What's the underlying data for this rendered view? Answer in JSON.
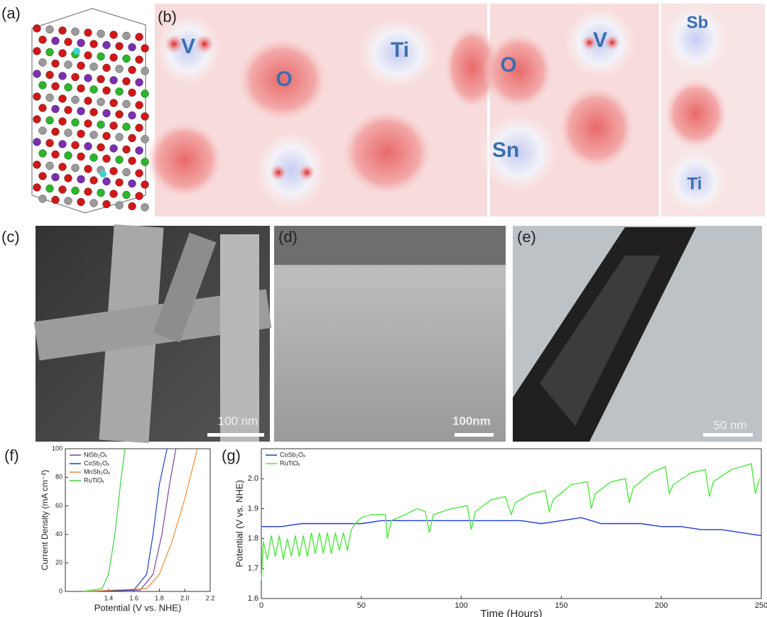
{
  "panel_labels": [
    "(a)",
    "(b)",
    "(c)",
    "(d)",
    "(e)",
    "(f)",
    "(g)"
  ],
  "atom_labels": [
    "V",
    "O",
    "Ti",
    "O",
    "V",
    "Sb",
    "Sn",
    "Ti"
  ],
  "scale_bars": [
    "100 nm",
    "100nm",
    "50 nm"
  ],
  "chart_data": [
    {
      "type": "line",
      "x_label": "Potential (V vs. NHE)",
      "y_label": "Current Density (mA cm⁻²)",
      "xlim": [
        1.06,
        2.2
      ],
      "ylim": [
        0,
        100
      ],
      "xticks": [
        1.4,
        1.6,
        1.8,
        {
          "value": 2,
          "label": "2.0"
        },
        2.2
      ],
      "yticks": [
        0,
        20,
        40,
        60,
        80,
        100
      ],
      "legend": "upper left",
      "series": [
        {
          "name": "NiSb₂Oₓ",
          "color": "#7b3fa0",
          "x": [
            1.2,
            1.65,
            1.75,
            1.82,
            1.88,
            1.93
          ],
          "values": [
            0,
            1,
            12,
            40,
            75,
            100
          ]
        },
        {
          "name": "CoSb₂Oₓ",
          "color": "#1f3fbf",
          "x": [
            1.2,
            1.6,
            1.7,
            1.75,
            1.8,
            1.86
          ],
          "values": [
            0,
            1,
            12,
            40,
            75,
            100
          ]
        },
        {
          "name": "MnSb₂Oₓ",
          "color": "#f08a30",
          "x": [
            1.2,
            1.7,
            1.8,
            1.9,
            2.0,
            2.1
          ],
          "values": [
            0,
            2,
            12,
            35,
            65,
            100
          ]
        },
        {
          "name": "RuTiOₓ",
          "color": "#3ed13e",
          "x": [
            1.2,
            1.35,
            1.4,
            1.45,
            1.5,
            1.53
          ],
          "values": [
            0,
            2,
            12,
            40,
            80,
            100
          ]
        }
      ]
    },
    {
      "type": "line",
      "x_label": "Time (Hours)",
      "y_label": "Potential (V vs. NHE)",
      "xlim": [
        0,
        250
      ],
      "ylim": [
        1.6,
        2.1
      ],
      "xticks": [
        0,
        50,
        100,
        150,
        200,
        250
      ],
      "yticks": [
        1.6,
        1.7,
        1.8,
        1.9,
        {
          "value": 2,
          "label": "2.0"
        }
      ],
      "legend": "upper left",
      "series": [
        {
          "name": "CoSb₂Oₓ",
          "color": "#1f3fd0",
          "x": [
            0,
            10,
            20,
            30,
            40,
            50,
            60,
            70,
            80,
            90,
            100,
            110,
            120,
            130,
            140,
            150,
            160,
            170,
            180,
            190,
            200,
            210,
            220,
            230,
            240,
            250
          ],
          "values": [
            1.84,
            1.84,
            1.85,
            1.85,
            1.85,
            1.85,
            1.86,
            1.86,
            1.86,
            1.86,
            1.86,
            1.86,
            1.86,
            1.86,
            1.85,
            1.86,
            1.87,
            1.85,
            1.85,
            1.85,
            1.84,
            1.84,
            1.83,
            1.83,
            1.82,
            1.81
          ]
        },
        {
          "name": "RuTiOₓ",
          "color": "#4ee83e",
          "x": [
            0,
            1,
            3,
            5,
            7,
            9,
            11,
            13,
            15,
            17,
            19,
            21,
            23,
            25,
            27,
            29,
            31,
            33,
            35,
            37,
            39,
            41,
            43,
            45,
            47,
            50,
            55,
            62,
            63,
            65,
            72,
            78,
            82,
            84,
            86,
            95,
            103,
            105,
            107,
            115,
            122,
            125,
            127,
            135,
            142,
            144,
            146,
            155,
            163,
            165,
            167,
            175,
            182,
            184,
            186,
            195,
            202,
            204,
            206,
            215,
            222,
            224,
            226,
            235,
            245,
            247,
            249
          ],
          "values": [
            1.66,
            1.79,
            1.73,
            1.81,
            1.74,
            1.81,
            1.73,
            1.8,
            1.74,
            1.81,
            1.74,
            1.81,
            1.74,
            1.82,
            1.75,
            1.82,
            1.75,
            1.82,
            1.75,
            1.82,
            1.76,
            1.82,
            1.76,
            1.83,
            1.85,
            1.87,
            1.88,
            1.88,
            1.8,
            1.86,
            1.88,
            1.9,
            1.89,
            1.82,
            1.88,
            1.9,
            1.91,
            1.83,
            1.89,
            1.93,
            1.94,
            1.88,
            1.92,
            1.95,
            1.96,
            1.89,
            1.93,
            1.98,
            1.99,
            1.9,
            1.95,
            1.99,
            2.0,
            1.92,
            1.97,
            2.02,
            2.04,
            1.95,
            1.98,
            2.02,
            2.03,
            1.94,
            1.99,
            2.03,
            2.05,
            1.95,
            2.0
          ]
        }
      ]
    }
  ]
}
